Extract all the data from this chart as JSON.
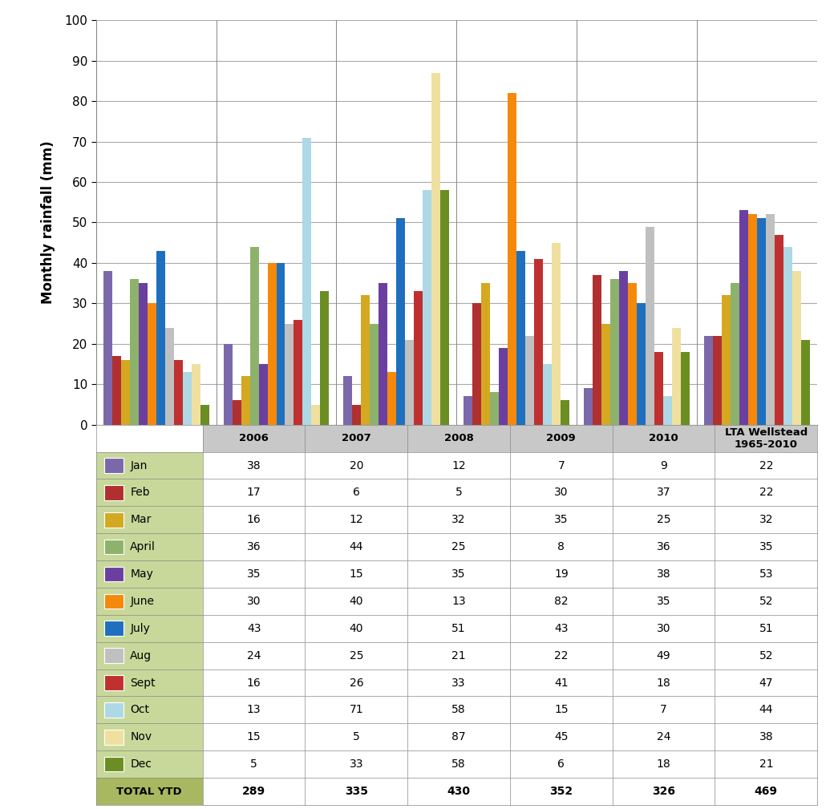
{
  "months": [
    "Jan",
    "Feb",
    "Mar",
    "April",
    "May",
    "June",
    "July",
    "Aug",
    "Sept",
    "Oct",
    "Nov",
    "Dec"
  ],
  "bar_colors": {
    "Jan": "#7B68AA",
    "Feb": "#B03030",
    "Mar": "#D4A820",
    "April": "#8DB26B",
    "May": "#6B3FA0",
    "June": "#F5890A",
    "July": "#1F6FBF",
    "Aug": "#C0C0C0",
    "Sept": "#C03030",
    "Oct": "#ADD8E6",
    "Nov": "#F0E0A0",
    "Dec": "#6B8E23"
  },
  "groups": [
    "2006",
    "2007",
    "2008",
    "2009",
    "2010",
    "LTA Wellstead\n1965-2010"
  ],
  "data": {
    "Jan": [
      38,
      20,
      12,
      7,
      9,
      22
    ],
    "Feb": [
      17,
      6,
      5,
      30,
      37,
      22
    ],
    "Mar": [
      16,
      12,
      32,
      35,
      25,
      32
    ],
    "April": [
      36,
      44,
      25,
      8,
      36,
      35
    ],
    "May": [
      35,
      15,
      35,
      19,
      38,
      53
    ],
    "June": [
      30,
      40,
      13,
      82,
      35,
      52
    ],
    "July": [
      43,
      40,
      51,
      43,
      30,
      51
    ],
    "Aug": [
      24,
      25,
      21,
      22,
      49,
      52
    ],
    "Sept": [
      16,
      26,
      33,
      41,
      18,
      47
    ],
    "Oct": [
      13,
      71,
      58,
      15,
      7,
      44
    ],
    "Nov": [
      15,
      5,
      87,
      45,
      24,
      38
    ],
    "Dec": [
      5,
      33,
      58,
      6,
      18,
      21
    ]
  },
  "totals": [
    289,
    335,
    430,
    352,
    326,
    469
  ],
  "ylabel": "Monthly rainfall (mm)",
  "ylim": [
    0,
    100
  ],
  "yticks": [
    0,
    10,
    20,
    30,
    40,
    50,
    60,
    70,
    80,
    90,
    100
  ],
  "table_header_bg": "#C8C8C8",
  "table_legend_bg": "#C8D89A",
  "table_total_bg": "#A8B860",
  "table_data_bg": "#FFFFFF",
  "figure_bg": "#FFFFFF",
  "grid_color": "#AAAAAA",
  "separator_color": "#888888"
}
